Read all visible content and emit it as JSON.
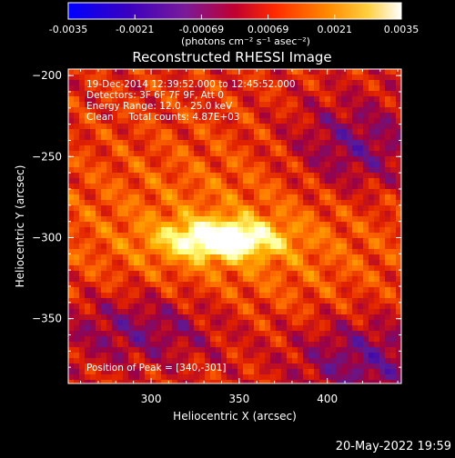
{
  "chart_data": {
    "type": "heatmap",
    "title": "Reconstructed RHESSI Image",
    "xlabel": "Heliocentric X (arcsec)",
    "ylabel": "Heliocentric Y (arcsec)",
    "xlim": [
      253,
      442
    ],
    "ylim": [
      -390,
      -196
    ],
    "xticks": [
      300,
      350,
      400
    ],
    "yticks": [
      -200,
      -250,
      -300,
      -350
    ],
    "colorbar": {
      "ticks": [
        "-0.0035",
        "-0.0021",
        "-0.00069",
        "0.00069",
        "0.0021",
        "0.0035"
      ],
      "range": [
        -0.0035,
        0.0035
      ],
      "units": "(photons cm⁻² s⁻¹ asec⁻²)"
    },
    "annotations": [
      "19-Dec-2014 12:39:52.000 to 12:45:52.000",
      "Detectors: 3F 6F 7F 9F, Att 0",
      "Energy Range: 12.0 - 25.0 keV",
      "Clean     Total counts: 4.87E+03"
    ],
    "peak_label": "Position of Peak = [340,-301]",
    "peak": [
      340,
      -301
    ],
    "timestamp": "20-May-2022 19:59"
  },
  "colors": {
    "background": "#000000",
    "text": "#ffffff",
    "colormap": [
      "#0000ff",
      "#3a00b0",
      "#5a1a9a",
      "#a00040",
      "#e02000",
      "#ff6a00",
      "#ffb000",
      "#ffff80",
      "#ffffff"
    ]
  }
}
